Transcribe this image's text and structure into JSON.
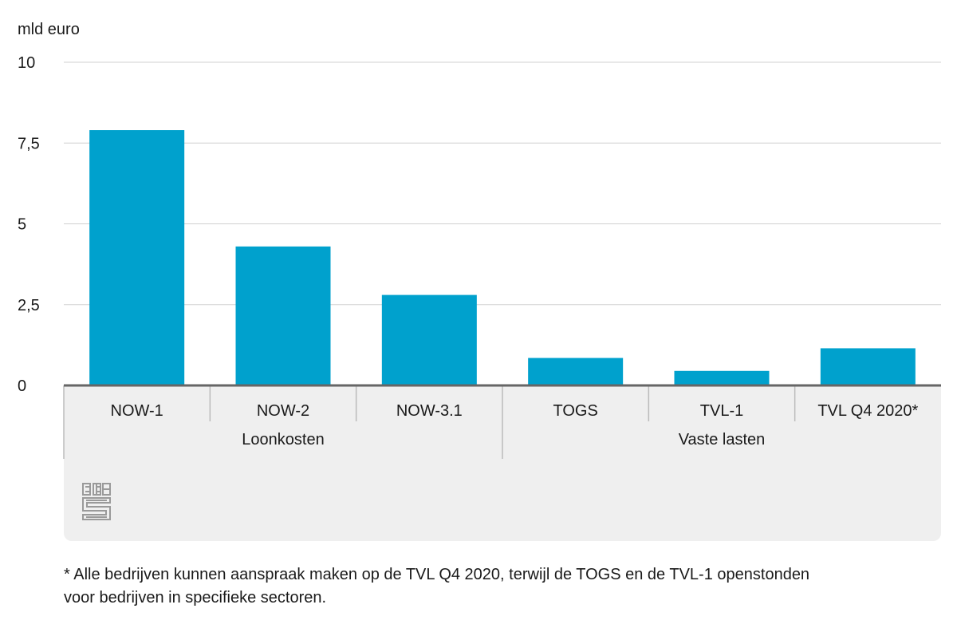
{
  "chart_data": {
    "type": "bar",
    "ylabel": "mld euro",
    "ylim": [
      0,
      10
    ],
    "yticks": [
      0,
      2.5,
      5,
      7.5,
      10
    ],
    "ytick_labels": [
      "0",
      "2,5",
      "5",
      "7,5",
      "10"
    ],
    "categories": [
      "NOW-1",
      "NOW-2",
      "NOW-3.1",
      "TOGS",
      "TVL-1",
      "TVL Q4 2020*"
    ],
    "groups": [
      {
        "label": "Loonkosten",
        "categories": [
          "NOW-1",
          "NOW-2",
          "NOW-3.1"
        ]
      },
      {
        "label": "Vaste lasten",
        "categories": [
          "TOGS",
          "TVL-1",
          "TVL Q4 2020*"
        ]
      }
    ],
    "values": [
      7.9,
      4.3,
      2.8,
      0.85,
      0.45,
      1.15
    ],
    "grid": true,
    "bar_color": "#00a1cd"
  },
  "logo": {
    "name": "cbs-logo",
    "text": "cbs"
  },
  "footnote": "* Alle bedrijven kunnen aanspraak maken op de TVL Q4 2020, terwijl de TOGS en de TVL-1 openstonden\nvoor bedrijven in specifieke sectoren.",
  "colors": {
    "bar": "#00a1cd",
    "axis_panel": "#efefef",
    "gridline": "#d0d0d0",
    "baseline": "#666666"
  }
}
